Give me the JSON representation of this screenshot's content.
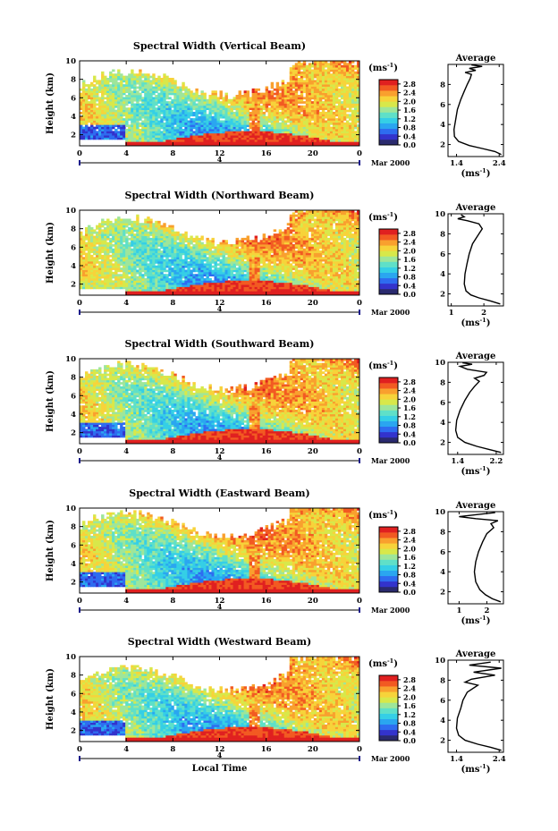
{
  "colormap": [
    "#2a2a6e",
    "#3333cc",
    "#2e6cf0",
    "#2aa6f0",
    "#35cfe6",
    "#5fe0c8",
    "#9ee69a",
    "#d8e84a",
    "#f7d33a",
    "#f9a02e",
    "#f25a22",
    "#e02020"
  ],
  "chart_data": [
    {
      "type": "heatmap",
      "title": "Spectral Width (Vertical Beam)",
      "ylabel": "Height (km)",
      "yticks": [
        "2",
        "4",
        "6",
        "8",
        "10"
      ],
      "ylim": [
        0.8,
        10
      ],
      "xticks": [
        "0",
        "4",
        "8",
        "12",
        "16",
        "20",
        "0"
      ],
      "xlim": [
        0,
        24
      ],
      "date_mark": "4",
      "date_text": "Mar 2000",
      "colorbar": {
        "unit": "(ms",
        "unit_exp": "-1",
        "unit_close": ")",
        "ticks": [
          "0.0",
          "0.4",
          "0.8",
          "1.2",
          "1.6",
          "2.0",
          "2.4",
          "2.8"
        ],
        "range": [
          0,
          3.0
        ]
      },
      "pattern": {
        "top": 7.5,
        "low_blue": true,
        "seed": 11
      },
      "average": {
        "title": "Average",
        "xticks": [
          "1.4",
          "2.4"
        ],
        "xlim": [
          1.2,
          2.5
        ],
        "xlabel": "(ms",
        "xlabel_exp": "-1",
        "xlabel_close": ")",
        "yticks": [
          "2",
          "4",
          "6",
          "8"
        ],
        "ylim": [
          0.8,
          10
        ],
        "profile": [
          [
            2.45,
            1.0
          ],
          [
            2.3,
            1.3
          ],
          [
            2.0,
            1.6
          ],
          [
            1.7,
            1.9
          ],
          [
            1.45,
            2.3
          ],
          [
            1.35,
            2.8
          ],
          [
            1.34,
            3.5
          ],
          [
            1.38,
            4.5
          ],
          [
            1.42,
            5.5
          ],
          [
            1.5,
            6.5
          ],
          [
            1.58,
            7.3
          ],
          [
            1.65,
            8.0
          ],
          [
            1.72,
            8.6
          ],
          [
            1.75,
            9.0
          ],
          [
            1.6,
            9.2
          ],
          [
            1.85,
            9.4
          ],
          [
            1.7,
            9.6
          ],
          [
            2.0,
            9.8
          ],
          [
            1.75,
            9.95
          ]
        ]
      }
    },
    {
      "type": "heatmap",
      "title": "Spectral Width (Northward Beam)",
      "ylabel": "Height (km)",
      "yticks": [
        "2",
        "4",
        "6",
        "8",
        "10"
      ],
      "ylim": [
        0.8,
        10
      ],
      "xticks": [
        "0",
        "4",
        "8",
        "12",
        "16",
        "20",
        "0"
      ],
      "xlim": [
        0,
        24
      ],
      "date_mark": "4",
      "date_text": "Mar 2000",
      "colorbar": {
        "unit": "(ms",
        "unit_exp": "-1",
        "unit_close": ")",
        "ticks": [
          "0.0",
          "0.4",
          "0.8",
          "1.2",
          "1.6",
          "2.0",
          "2.4",
          "2.8"
        ],
        "range": [
          0,
          3.0
        ]
      },
      "pattern": {
        "top": 7.8,
        "low_blue": false,
        "seed": 23
      },
      "average": {
        "title": "Average",
        "xticks": [
          "1",
          "2"
        ],
        "xlim": [
          0.9,
          2.6
        ],
        "xlabel": "(ms",
        "xlabel_exp": "-1",
        "xlabel_close": ")",
        "yticks": [
          "2",
          "4",
          "6",
          "8",
          "10"
        ],
        "ylim": [
          0.8,
          10
        ],
        "profile": [
          [
            2.5,
            1.0
          ],
          [
            2.2,
            1.3
          ],
          [
            1.85,
            1.6
          ],
          [
            1.6,
            1.9
          ],
          [
            1.45,
            2.3
          ],
          [
            1.4,
            3.0
          ],
          [
            1.42,
            4.0
          ],
          [
            1.48,
            5.0
          ],
          [
            1.55,
            6.0
          ],
          [
            1.65,
            7.0
          ],
          [
            1.85,
            8.0
          ],
          [
            1.95,
            8.5
          ],
          [
            1.85,
            9.0
          ],
          [
            1.5,
            9.3
          ],
          [
            1.2,
            9.5
          ],
          [
            1.4,
            9.7
          ],
          [
            1.3,
            9.9
          ]
        ]
      }
    },
    {
      "type": "heatmap",
      "title": "Spectral Width (Southward Beam)",
      "ylabel": "Height (km)",
      "yticks": [
        "2",
        "4",
        "6",
        "8",
        "10"
      ],
      "ylim": [
        0.8,
        10
      ],
      "xticks": [
        "0",
        "4",
        "8",
        "12",
        "16",
        "20",
        "0"
      ],
      "xlim": [
        0,
        24
      ],
      "date_mark": "4",
      "date_text": "Mar 2000",
      "colorbar": {
        "unit": "(ms",
        "unit_exp": "-1",
        "unit_close": ")",
        "ticks": [
          "0.0",
          "0.4",
          "0.8",
          "1.2",
          "1.6",
          "2.0",
          "2.4",
          "2.8"
        ],
        "range": [
          0,
          3.0
        ]
      },
      "pattern": {
        "top": 8.0,
        "low_blue": true,
        "seed": 37
      },
      "average": {
        "title": "Average",
        "xticks": [
          "1.4",
          "2.2"
        ],
        "xlim": [
          1.2,
          2.35
        ],
        "xlabel": "(ms",
        "xlabel_exp": "-1",
        "xlabel_close": ")",
        "yticks": [
          "2",
          "4",
          "6",
          "8",
          "10"
        ],
        "ylim": [
          0.8,
          10
        ],
        "profile": [
          [
            2.3,
            1.0
          ],
          [
            2.05,
            1.3
          ],
          [
            1.8,
            1.6
          ],
          [
            1.55,
            2.0
          ],
          [
            1.4,
            2.5
          ],
          [
            1.36,
            3.2
          ],
          [
            1.38,
            4.2
          ],
          [
            1.45,
            5.2
          ],
          [
            1.55,
            6.2
          ],
          [
            1.65,
            7.0
          ],
          [
            1.75,
            7.6
          ],
          [
            1.85,
            8.1
          ],
          [
            1.75,
            8.4
          ],
          [
            1.95,
            8.7
          ],
          [
            2.0,
            9.0
          ],
          [
            1.6,
            9.3
          ],
          [
            1.45,
            9.6
          ],
          [
            1.7,
            9.8
          ],
          [
            1.5,
            9.95
          ]
        ]
      }
    },
    {
      "type": "heatmap",
      "title": "Spectral Width (Eastward Beam)",
      "ylabel": "Height (km)",
      "yticks": [
        "2",
        "4",
        "6",
        "8",
        "10"
      ],
      "ylim": [
        0.8,
        10
      ],
      "xticks": [
        "0",
        "4",
        "8",
        "12",
        "16",
        "20",
        "0"
      ],
      "xlim": [
        0,
        24
      ],
      "date_mark": "4",
      "date_text": "Mar 2000",
      "colorbar": {
        "unit": "(ms",
        "unit_exp": "-1",
        "unit_close": ")",
        "ticks": [
          "0.0",
          "0.4",
          "0.8",
          "1.2",
          "1.6",
          "2.0",
          "2.4",
          "2.8"
        ],
        "range": [
          0,
          3.0
        ]
      },
      "pattern": {
        "top": 8.2,
        "low_blue": true,
        "seed": 51
      },
      "average": {
        "title": "Average",
        "xticks": [
          "1",
          "2"
        ],
        "xlim": [
          0.6,
          2.6
        ],
        "xlabel": "(ms",
        "xlabel_exp": "-1",
        "xlabel_close": ")",
        "yticks": [
          "2",
          "4",
          "6",
          "8",
          "10"
        ],
        "ylim": [
          0.8,
          10
        ],
        "profile": [
          [
            2.5,
            1.0
          ],
          [
            2.2,
            1.3
          ],
          [
            1.95,
            1.7
          ],
          [
            1.75,
            2.2
          ],
          [
            1.6,
            3.0
          ],
          [
            1.55,
            4.0
          ],
          [
            1.6,
            5.0
          ],
          [
            1.7,
            6.0
          ],
          [
            1.85,
            7.0
          ],
          [
            2.0,
            7.8
          ],
          [
            2.25,
            8.4
          ],
          [
            2.15,
            8.8
          ],
          [
            2.4,
            9.1
          ],
          [
            1.6,
            9.3
          ],
          [
            1.0,
            9.5
          ],
          [
            1.6,
            9.7
          ],
          [
            2.3,
            9.9
          ]
        ]
      }
    },
    {
      "type": "heatmap",
      "title": "Spectral Width (Westward Beam)",
      "ylabel": "Height (km)",
      "yticks": [
        "2",
        "4",
        "6",
        "8",
        "10"
      ],
      "ylim": [
        0.8,
        10
      ],
      "xticks": [
        "0",
        "4",
        "8",
        "12",
        "16",
        "20",
        "0"
      ],
      "xlim": [
        0,
        24
      ],
      "date_mark": "4",
      "date_text": "Mar 2000",
      "xlabel": "Local Time",
      "colorbar": {
        "unit": "(ms",
        "unit_exp": "-1",
        "unit_close": ")",
        "ticks": [
          "0.0",
          "0.4",
          "0.8",
          "1.2",
          "1.6",
          "2.0",
          "2.4",
          "2.8"
        ],
        "range": [
          0,
          3.0
        ]
      },
      "pattern": {
        "top": 7.6,
        "low_blue": true,
        "seed": 67
      },
      "average": {
        "title": "Average",
        "xticks": [
          "1.4",
          "2.4"
        ],
        "xlim": [
          1.2,
          2.5
        ],
        "xlabel": "(ms",
        "xlabel_exp": "-1",
        "xlabel_close": ")",
        "yticks": [
          "2",
          "4",
          "6",
          "8",
          "10"
        ],
        "ylim": [
          0.8,
          10
        ],
        "profile": [
          [
            2.45,
            1.0
          ],
          [
            2.2,
            1.3
          ],
          [
            1.9,
            1.6
          ],
          [
            1.6,
            2.0
          ],
          [
            1.45,
            2.5
          ],
          [
            1.4,
            3.2
          ],
          [
            1.42,
            4.2
          ],
          [
            1.5,
            5.2
          ],
          [
            1.55,
            6.0
          ],
          [
            1.65,
            6.8
          ],
          [
            1.9,
            7.5
          ],
          [
            1.6,
            7.8
          ],
          [
            1.75,
            8.1
          ],
          [
            2.3,
            8.5
          ],
          [
            1.8,
            8.8
          ],
          [
            2.45,
            9.2
          ],
          [
            1.7,
            9.5
          ],
          [
            2.2,
            9.8
          ]
        ]
      }
    }
  ]
}
